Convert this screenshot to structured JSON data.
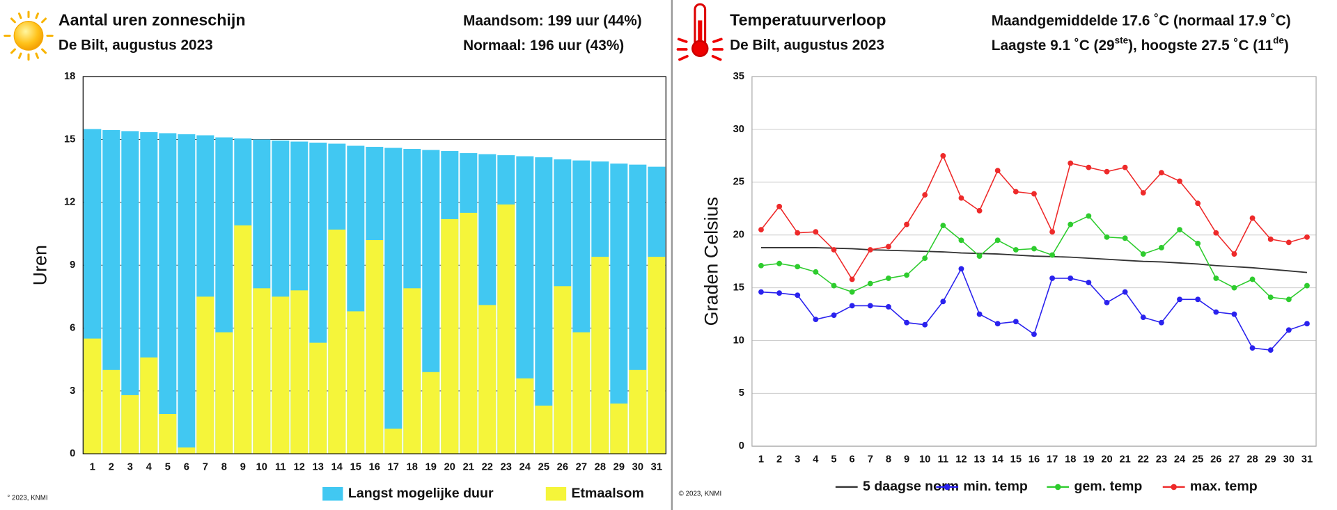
{
  "chart_data": [
    {
      "type": "bar",
      "title": "Aantal uren zonneschijn",
      "subtitle": "De Bilt, augustus 2023",
      "stats": [
        [
          "Maandsom: 199 uur (44%)"
        ],
        [
          "Normaal: 196 uur (43%)"
        ]
      ],
      "ylabel": "Uren",
      "copyright": "° 2023, KNMI",
      "categories": [
        "1",
        "2",
        "3",
        "4",
        "5",
        "6",
        "7",
        "8",
        "9",
        "10",
        "11",
        "12",
        "13",
        "14",
        "15",
        "16",
        "17",
        "18",
        "19",
        "20",
        "21",
        "22",
        "23",
        "24",
        "25",
        "26",
        "27",
        "28",
        "29",
        "30",
        "31"
      ],
      "series": [
        {
          "name": "Langst mogelijke duur",
          "color": "#41c8f2",
          "values": [
            15.5,
            15.45,
            15.4,
            15.35,
            15.3,
            15.25,
            15.2,
            15.1,
            15.05,
            15.0,
            14.95,
            14.9,
            14.85,
            14.8,
            14.7,
            14.65,
            14.6,
            14.55,
            14.5,
            14.45,
            14.35,
            14.3,
            14.25,
            14.2,
            14.15,
            14.05,
            14.0,
            13.95,
            13.85,
            13.8,
            13.7
          ]
        },
        {
          "name": "Etmaalsom",
          "color": "#f5f53a",
          "values": [
            5.5,
            4.0,
            2.8,
            4.6,
            1.9,
            0.3,
            7.5,
            5.8,
            10.9,
            7.9,
            7.5,
            7.8,
            5.3,
            10.7,
            6.8,
            10.2,
            1.2,
            7.9,
            3.9,
            11.2,
            11.5,
            7.1,
            11.9,
            3.6,
            2.3,
            8.0,
            5.8,
            9.4,
            2.4,
            4.0,
            9.4
          ]
        }
      ],
      "ylim": [
        0,
        18
      ],
      "yticks": [
        0,
        3,
        6,
        9,
        12,
        15,
        18
      ],
      "grid": true
    },
    {
      "type": "line",
      "title": "Temperatuurverloop",
      "subtitle": "De Bilt, augustus 2023",
      "stats": [
        [
          "Maandgemiddelde 17.6 ˚C (normaal 17.9 ˚C)"
        ],
        [
          "Laagste 9.1 ˚C (29",
          "ste",
          "), hoogste 27.5 ˚C (11",
          "de",
          ")"
        ]
      ],
      "ylabel": "Graden Celsius",
      "copyright": "© 2023, KNMI",
      "categories": [
        "1",
        "2",
        "3",
        "4",
        "5",
        "6",
        "7",
        "8",
        "9",
        "10",
        "11",
        "12",
        "13",
        "14",
        "15",
        "16",
        "17",
        "18",
        "19",
        "20",
        "21",
        "22",
        "23",
        "24",
        "25",
        "26",
        "27",
        "28",
        "29",
        "30",
        "31"
      ],
      "series": [
        {
          "name": "5 daagse norm",
          "color": "#333333",
          "markers": false,
          "values": [
            18.8,
            18.8,
            18.8,
            18.8,
            18.75,
            18.7,
            18.6,
            18.55,
            18.5,
            18.45,
            18.4,
            18.3,
            18.25,
            18.2,
            18.1,
            18.0,
            17.95,
            17.9,
            17.8,
            17.7,
            17.6,
            17.5,
            17.45,
            17.35,
            17.25,
            17.1,
            17.0,
            16.9,
            16.75,
            16.6,
            16.45
          ]
        },
        {
          "name": "min. temp",
          "color": "#2a22ee",
          "markers": true,
          "values": [
            14.6,
            14.5,
            14.3,
            12.0,
            12.4,
            13.3,
            13.3,
            13.2,
            11.7,
            11.5,
            13.7,
            16.8,
            12.5,
            11.6,
            11.8,
            10.6,
            15.9,
            15.9,
            15.5,
            13.6,
            14.6,
            12.2,
            11.7,
            13.9,
            13.9,
            12.7,
            12.5,
            9.3,
            9.1,
            11.0,
            11.6
          ]
        },
        {
          "name": "gem. temp",
          "color": "#2ecc2e",
          "markers": true,
          "values": [
            17.1,
            17.3,
            17.0,
            16.5,
            15.2,
            14.6,
            15.4,
            15.9,
            16.2,
            17.8,
            20.9,
            19.5,
            18.0,
            19.5,
            18.6,
            18.7,
            18.1,
            21.0,
            21.8,
            19.8,
            19.7,
            18.2,
            18.8,
            20.5,
            19.2,
            15.9,
            15.0,
            15.8,
            14.1,
            13.9,
            15.2
          ]
        },
        {
          "name": "max. temp",
          "color": "#ee2a2a",
          "markers": true,
          "values": [
            20.5,
            22.7,
            20.2,
            20.3,
            18.6,
            15.8,
            18.6,
            18.9,
            21.0,
            23.8,
            27.5,
            23.5,
            22.3,
            26.1,
            24.1,
            23.9,
            20.3,
            26.8,
            26.4,
            26.0,
            26.4,
            24.0,
            25.9,
            25.1,
            23.0,
            20.2,
            18.2,
            21.6,
            19.6,
            19.3,
            19.8
          ]
        }
      ],
      "ylim": [
        0,
        35
      ],
      "yticks": [
        0,
        5,
        10,
        15,
        20,
        25,
        30,
        35
      ],
      "grid": true
    }
  ]
}
